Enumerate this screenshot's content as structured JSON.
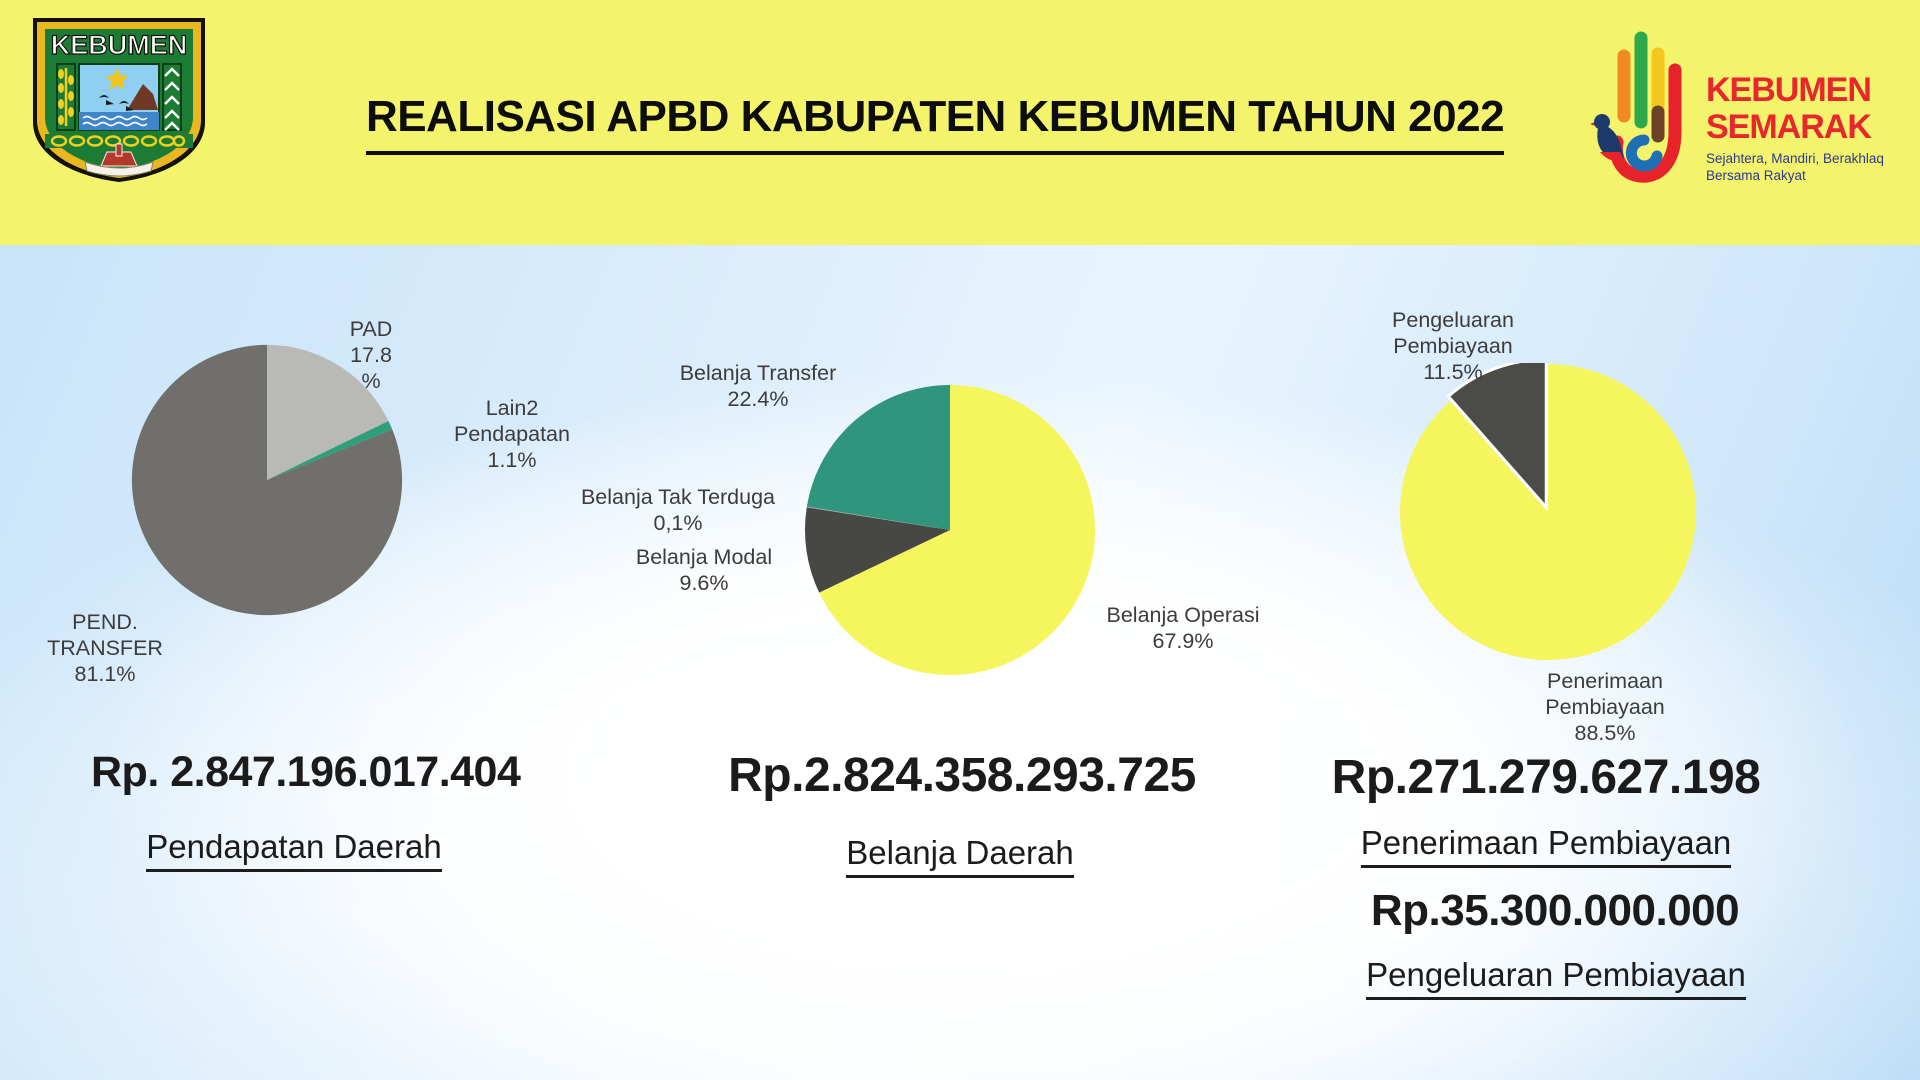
{
  "header": {
    "title": "REALISASI APBD KABUPATEN KEBUMEN TAHUN 2022",
    "left_logo": {
      "text": "KEBUMEN"
    },
    "right_logo": {
      "line1": "KEBUMEN",
      "line2": "SEMARAK",
      "tagline1": "Sejahtera, Mandiri, Berakhlaq",
      "tagline2": "Bersama Rakyat"
    }
  },
  "colors": {
    "header_background": "#f3f46c",
    "pie_yellow": "#f5f65e",
    "pie_teal": "#2f957c",
    "pie_dark_gray": "#474744",
    "pie_medium_gray": "#706f6b",
    "pie_light_gray": "#b9bab6",
    "pie_green": "#2f9e7b",
    "brand_red": "#e8262d",
    "brand_blue": "#2b3990"
  },
  "sections": [
    {
      "amount": "Rp. 2.847.196.017.404",
      "caption": "Pendapatan Daerah"
    },
    {
      "amount": "Rp.2.824.358.293.725",
      "caption": "Belanja Daerah"
    },
    {
      "amount": "Rp.271.279.627.198",
      "caption": "Penerimaan Pembiayaan"
    },
    {
      "amount": "Rp.35.300.000.000",
      "caption": "Pengeluaran Pembiayaan"
    }
  ],
  "chart_data": [
    {
      "type": "pie",
      "title": "Pendapatan Daerah",
      "total_label": "Rp. 2.847.196.017.404",
      "start_angle_deg": 0,
      "direction": "clockwise",
      "slices": [
        {
          "label": "PAD",
          "value": 17.8,
          "color": "#b9bab6"
        },
        {
          "label": "Lain2 Pendapatan",
          "value": 1.1,
          "color": "#2f9e7b"
        },
        {
          "label": "PEND. TRANSFER",
          "value": 81.1,
          "color": "#706f6b"
        }
      ],
      "callouts": [
        {
          "text": "PAD\n17.8\n%"
        },
        {
          "text": "Lain2\nPendapatan\n1.1%"
        },
        {
          "text": "PEND.\nTRANSFER\n81.1%"
        }
      ]
    },
    {
      "type": "pie",
      "title": "Belanja Daerah",
      "total_label": "Rp.2.824.358.293.725",
      "start_angle_deg": 0,
      "direction": "clockwise",
      "slices": [
        {
          "label": "Belanja Operasi",
          "value": 67.9,
          "color": "#f5f65e"
        },
        {
          "label": "Belanja Modal",
          "value": 9.6,
          "color": "#474744"
        },
        {
          "label": "Belanja Tak Terduga",
          "value": 0.1,
          "color": "#9aa09e"
        },
        {
          "label": "Belanja Transfer",
          "value": 22.4,
          "color": "#2f957c"
        }
      ],
      "callouts": [
        {
          "text": "Belanja Transfer\n22.4%"
        },
        {
          "text": "Belanja Tak Terduga\n0,1%"
        },
        {
          "text": "Belanja Modal\n9.6%"
        },
        {
          "text": "Belanja Operasi\n67.9%"
        }
      ]
    },
    {
      "type": "pie",
      "title": "Penerimaan Pembiayaan",
      "total_label": "Rp.271.279.627.198",
      "start_angle_deg": 0,
      "direction": "clockwise",
      "slices": [
        {
          "label": "Penerimaan Pembiayaan",
          "value": 88.5,
          "color": "#f5f65e"
        },
        {
          "label": "Pengeluaran Pembiayaan",
          "value": 11.5,
          "color": "#4b4b47",
          "exploded": true
        }
      ],
      "callouts": [
        {
          "text": "Pengeluaran\nPembiayaan\n11.5%"
        },
        {
          "text": "Penerimaan\nPembiayaan\n88.5%"
        }
      ]
    }
  ]
}
